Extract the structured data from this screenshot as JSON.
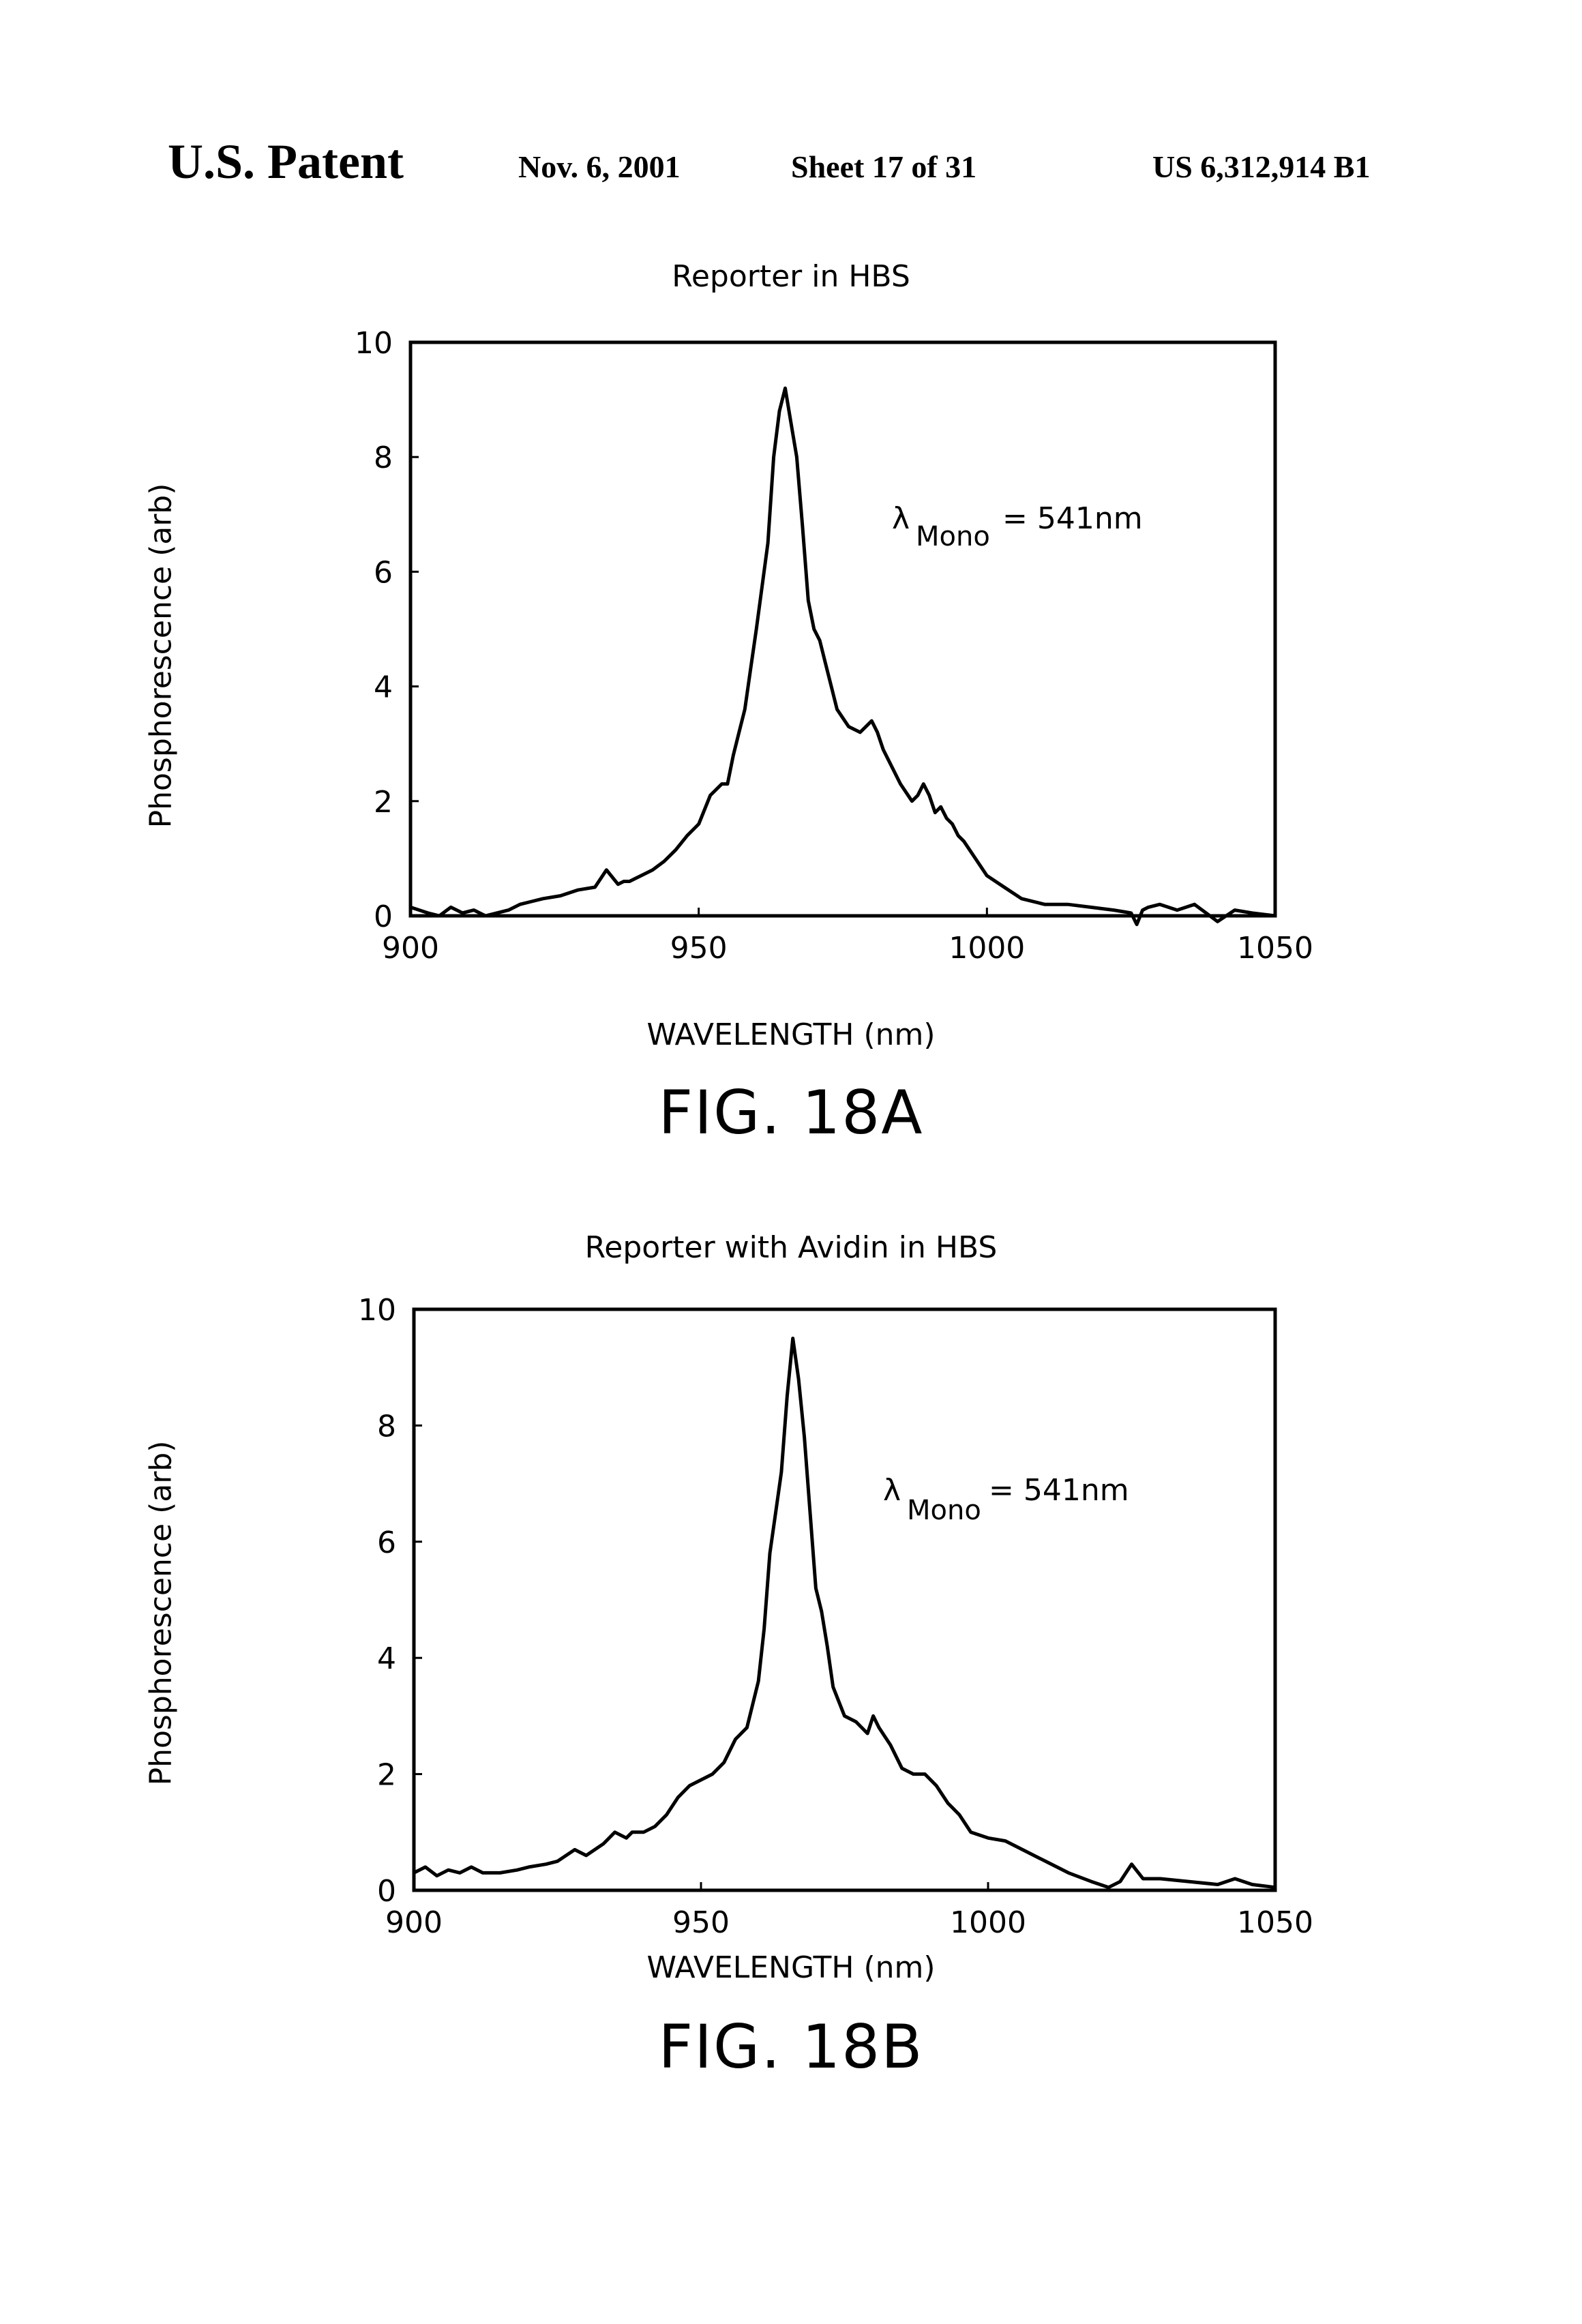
{
  "header": {
    "left": "U.S. Patent",
    "date": "Nov. 6, 2001",
    "sheet": "Sheet 17 of 31",
    "number": "US 6,312,914 B1"
  },
  "figures": [
    {
      "label": "FIG. 18A",
      "title": "Reporter in HBS",
      "annotation_symbol": "λ",
      "annotation_sub": "Mono",
      "annotation_value": "= 541nm"
    },
    {
      "label": "FIG. 18B",
      "title": "Reporter with Avidin in HBS",
      "annotation_symbol": "λ",
      "annotation_sub": "Mono",
      "annotation_value": "= 541nm"
    }
  ],
  "chart_data": [
    {
      "type": "line",
      "title": "Reporter in HBS",
      "xlabel": "WAVELENGTH (nm)",
      "ylabel": "Phosphorescence (arb)",
      "xlim": [
        900,
        1050
      ],
      "ylim": [
        0,
        10
      ],
      "xticks": [
        "900",
        "950",
        "1000",
        "1050"
      ],
      "yticks": [
        "0",
        "2",
        "4",
        "6",
        "8",
        "10"
      ],
      "grid": false,
      "series": [
        {
          "x": [
            900,
            903,
            905,
            907,
            909,
            911,
            913,
            915,
            917,
            919,
            921,
            923,
            926,
            929,
            932,
            934,
            936,
            937,
            938,
            939,
            940,
            942,
            944,
            946,
            948,
            950,
            952,
            954,
            955,
            956,
            957,
            958,
            959,
            960,
            962,
            963,
            964,
            965,
            966,
            967,
            968,
            969,
            970,
            971,
            972,
            973,
            974,
            976,
            978,
            980,
            981,
            982,
            983,
            985,
            987,
            988,
            989,
            990,
            991,
            992,
            993,
            994,
            995,
            996,
            998,
            1000,
            1003,
            1006,
            1010,
            1014,
            1018,
            1022,
            1025,
            1026,
            1027,
            1028,
            1030,
            1033,
            1036,
            1038,
            1040,
            1043,
            1046,
            1050
          ],
          "y": [
            0.15,
            0.05,
            0.0,
            0.15,
            0.05,
            0.1,
            0.0,
            0.05,
            0.1,
            0.2,
            0.25,
            0.3,
            0.35,
            0.45,
            0.5,
            0.8,
            0.55,
            0.6,
            0.6,
            0.65,
            0.7,
            0.8,
            0.95,
            1.15,
            1.4,
            1.6,
            2.1,
            2.3,
            2.3,
            2.8,
            3.2,
            3.6,
            4.3,
            5.0,
            6.5,
            8.0,
            8.8,
            9.2,
            8.6,
            8.0,
            6.8,
            5.5,
            5.0,
            4.8,
            4.4,
            4.0,
            3.6,
            3.3,
            3.2,
            3.4,
            3.2,
            2.9,
            2.7,
            2.3,
            2.0,
            2.1,
            2.3,
            2.1,
            1.8,
            1.9,
            1.7,
            1.6,
            1.4,
            1.3,
            1.0,
            0.7,
            0.5,
            0.3,
            0.2,
            0.2,
            0.15,
            0.1,
            0.05,
            -0.15,
            0.1,
            0.15,
            0.2,
            0.1,
            0.2,
            0.05,
            -0.1,
            0.1,
            0.05,
            0.0
          ]
        }
      ]
    },
    {
      "type": "line",
      "title": "Reporter with Avidin in HBS",
      "xlabel": "WAVELENGTH (nm)",
      "ylabel": "Phosphorescence (arb)",
      "xlim": [
        900,
        1050
      ],
      "ylim": [
        0,
        10
      ],
      "xticks": [
        "900",
        "950",
        "1000",
        "1050"
      ],
      "yticks": [
        "0",
        "2",
        "4",
        "6",
        "8",
        "10"
      ],
      "grid": false,
      "series": [
        {
          "x": [
            900,
            902,
            904,
            906,
            908,
            910,
            912,
            915,
            918,
            920,
            923,
            925,
            928,
            930,
            933,
            935,
            937,
            938,
            940,
            942,
            944,
            946,
            948,
            950,
            952,
            954,
            956,
            958,
            960,
            961,
            962,
            963,
            964,
            965,
            966,
            967,
            968,
            969,
            970,
            971,
            972,
            973,
            975,
            977,
            979,
            980,
            981,
            983,
            985,
            987,
            989,
            991,
            993,
            995,
            997,
            1000,
            1003,
            1006,
            1010,
            1014,
            1018,
            1021,
            1023,
            1025,
            1027,
            1030,
            1035,
            1040,
            1043,
            1046,
            1050
          ],
          "y": [
            0.3,
            0.4,
            0.25,
            0.35,
            0.3,
            0.4,
            0.3,
            0.3,
            0.35,
            0.4,
            0.45,
            0.5,
            0.7,
            0.6,
            0.8,
            1.0,
            0.9,
            1.0,
            1.0,
            1.1,
            1.3,
            1.6,
            1.8,
            1.9,
            2.0,
            2.2,
            2.6,
            2.8,
            3.6,
            4.5,
            5.8,
            6.5,
            7.2,
            8.5,
            9.5,
            8.8,
            7.8,
            6.5,
            5.2,
            4.8,
            4.2,
            3.5,
            3.0,
            2.9,
            2.7,
            3.0,
            2.8,
            2.5,
            2.1,
            2.0,
            2.0,
            1.8,
            1.5,
            1.3,
            1.0,
            0.9,
            0.85,
            0.7,
            0.5,
            0.3,
            0.15,
            0.05,
            0.15,
            0.45,
            0.2,
            0.2,
            0.15,
            0.1,
            0.2,
            0.1,
            0.05
          ]
        }
      ]
    }
  ]
}
